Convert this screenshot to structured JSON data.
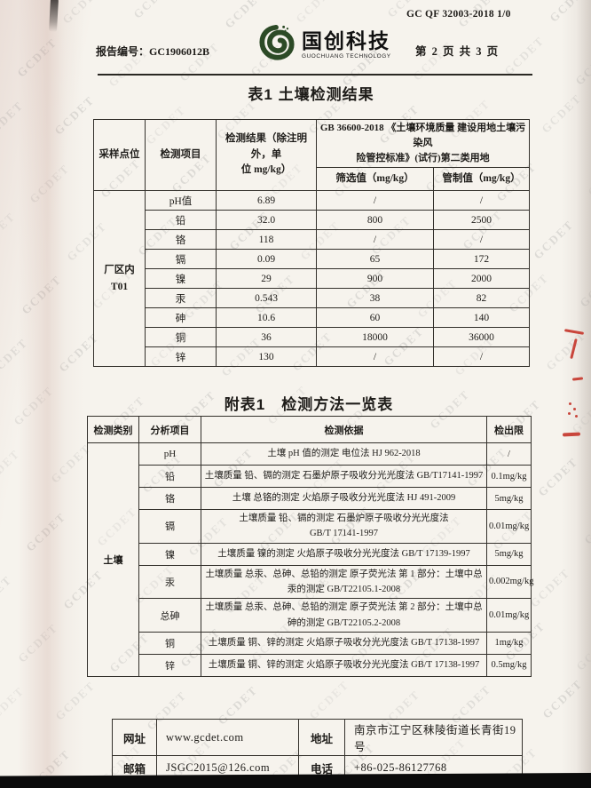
{
  "header": {
    "doc_code": "GC QF 32003-2018 1/0",
    "report_no_label": "报告编号：",
    "report_no": "GC1906012B",
    "logo_name": "国创科技",
    "logo_sub": "GUOCHUANG TECHNOLOGY",
    "page_info": "第 2 页 共 3 页"
  },
  "table1": {
    "title": "表1 土壤检测结果",
    "headers": {
      "sample": "采样点位",
      "item": "检测项目",
      "result": "检测结果（除注明外，单\n位 mg/kg）",
      "standard": "GB 36600-2018 《土壤环境质量 建设用地土壤污染风\n险管控标准》(试行)第二类用地",
      "screening": "筛选值（mg/kg）",
      "control": "管制值（mg/kg）"
    },
    "sample_point": {
      "line1": "厂区内",
      "line2": "T01"
    },
    "rows": [
      {
        "item": "pH值",
        "result": "6.89",
        "screening": "/",
        "control": "/"
      },
      {
        "item": "铅",
        "result": "32.0",
        "screening": "800",
        "control": "2500"
      },
      {
        "item": "铬",
        "result": "118",
        "screening": "/",
        "control": "/"
      },
      {
        "item": "镉",
        "result": "0.09",
        "screening": "65",
        "control": "172"
      },
      {
        "item": "镍",
        "result": "29",
        "screening": "900",
        "control": "2000"
      },
      {
        "item": "汞",
        "result": "0.543",
        "screening": "38",
        "control": "82"
      },
      {
        "item": "砷",
        "result": "10.6",
        "screening": "60",
        "control": "140"
      },
      {
        "item": "铜",
        "result": "36",
        "screening": "18000",
        "control": "36000"
      },
      {
        "item": "锌",
        "result": "130",
        "screening": "/",
        "control": "/"
      }
    ]
  },
  "table2": {
    "title": "附表1　检测方法一览表",
    "headers": {
      "category": "检测类别",
      "item": "分析项目",
      "basis": "检测依据",
      "limit": "检出限"
    },
    "category_value": "土壤",
    "rows": [
      {
        "item": "pH",
        "method": "土壤  pH 值的测定  电位法  HJ 962-2018",
        "limit": "/"
      },
      {
        "item": "铅",
        "method": "土壤质量  铅、镉的测定  石墨炉原子吸收分光光度法 GB/T17141-1997",
        "limit": "0.1mg/kg"
      },
      {
        "item": "铬",
        "method": "土壤  总铬的测定  火焰原子吸收分光光度法 HJ 491-2009",
        "limit": "5mg/kg"
      },
      {
        "item": "镉",
        "method": "土壤质量  铅、镉的测定  石墨炉原子吸收分光光度法\nGB/T 17141-1997",
        "limit": "0.01mg/kg"
      },
      {
        "item": "镍",
        "method": "土壤质量  镍的测定  火焰原子吸收分光光度法 GB/T 17139-1997",
        "limit": "5mg/kg"
      },
      {
        "item": "汞",
        "method": "土壤质量  总汞、总砷、总铅的测定  原子荧光法  第 1 部分：土壤中总\n汞的测定 GB/T22105.1-2008",
        "limit": "0.002mg/kg"
      },
      {
        "item": "总砷",
        "method": "土壤质量  总汞、总砷、总铅的测定  原子荧光法  第 2 部分：土壤中总\n砷的测定 GB/T22105.2-2008",
        "limit": "0.01mg/kg"
      },
      {
        "item": "铜",
        "method": "土壤质量  铜、锌的测定  火焰原子吸收分光光度法   GB/T 17138-1997",
        "limit": "1mg/kg"
      },
      {
        "item": "锌",
        "method": "土壤质量  铜、锌的测定  火焰原子吸收分光光度法   GB/T 17138-1997",
        "limit": "0.5mg/kg"
      }
    ]
  },
  "footer": {
    "website_label": "网址",
    "website": "www.gcdet.com",
    "address_label": "地址",
    "address": "南京市江宁区秣陵街道长青街19号",
    "email_label": "邮箱",
    "email": "JSGC2015@126.com",
    "phone_label": "电话",
    "phone": "+86-025-86127768"
  },
  "watermark": {
    "text": "GCDET"
  },
  "colors": {
    "logo_green": "#2c4a26",
    "pen_red": "#c9463c",
    "border_dark": "#33302b",
    "scan_bar": "#0b0b0b"
  }
}
